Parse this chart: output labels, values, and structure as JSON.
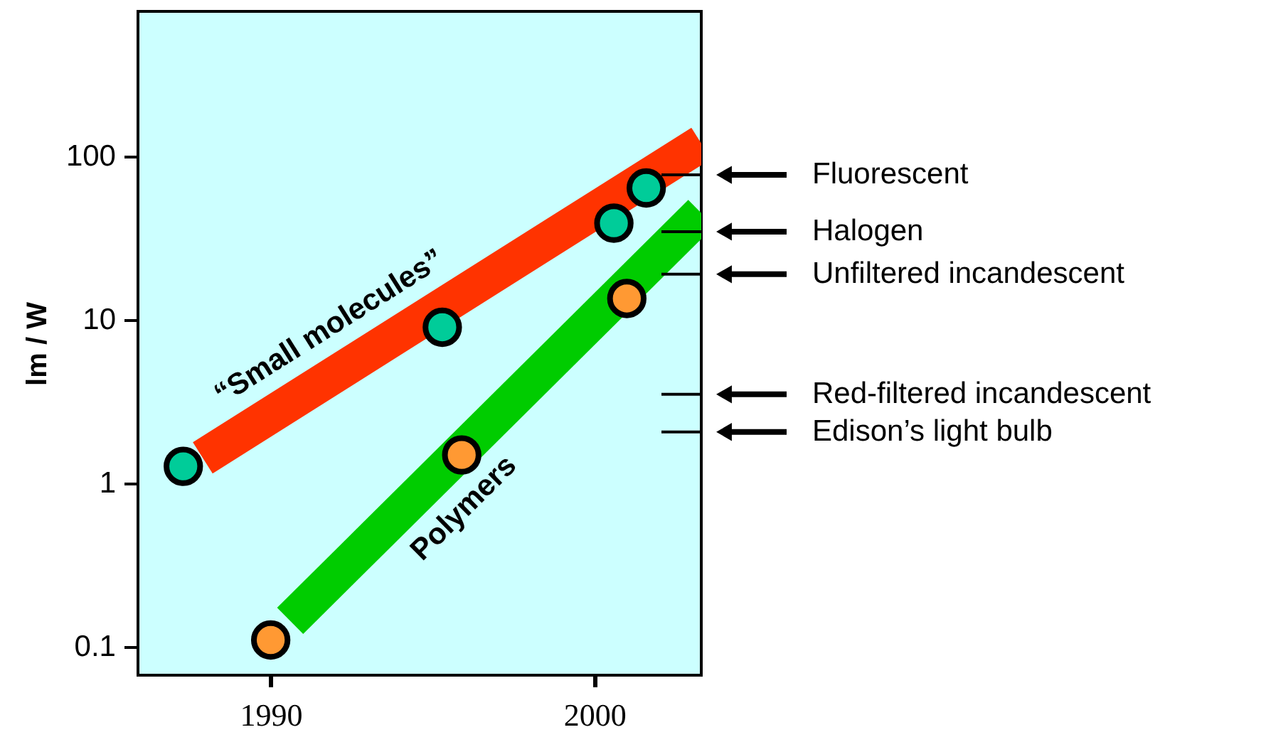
{
  "chart_data": {
    "type": "scatter",
    "ylabel": "lm / W",
    "xlim": [
      1985.9,
      2003.3
    ],
    "ylim": [
      0.067,
      770
    ],
    "xticks": [
      1990,
      2000
    ],
    "yticks": [
      0.1,
      1,
      10,
      100
    ],
    "log": "y",
    "grid": false,
    "series": [
      {
        "type": "line",
        "color": "#ff3300",
        "x": [
          1987.9,
          2003.3
        ],
        "values": [
          1.43,
          120
        ]
      },
      {
        "type": "line",
        "color": "#00cc00",
        "x": [
          1990.6,
          2003.3
        ],
        "values": [
          0.144,
          45
        ]
      },
      {
        "color": "#00cc99",
        "x": [
          1987.3,
          1995.3,
          2000.6,
          2001.6
        ],
        "values": [
          1.27,
          9,
          39,
          64
        ]
      },
      {
        "color": "#ff9933",
        "x": [
          1990,
          1995.9,
          2001
        ],
        "values": [
          0.11,
          1.49,
          13.5
        ]
      }
    ],
    "annotations": [
      "“Small molecules”",
      "Polymers"
    ],
    "ref_lines": [
      {
        "axis": "y",
        "value": 77,
        "label": "Fluorescent"
      },
      {
        "axis": "y",
        "value": 34.6,
        "label": "Halogen"
      },
      {
        "axis": "y",
        "value": 19,
        "label": "Unfiltered incandescent"
      },
      {
        "axis": "y",
        "value": 3.5,
        "label": "Red-filtered incandescent"
      },
      {
        "axis": "y",
        "value": 2.06,
        "label": "Edison’s light bulb"
      }
    ]
  }
}
